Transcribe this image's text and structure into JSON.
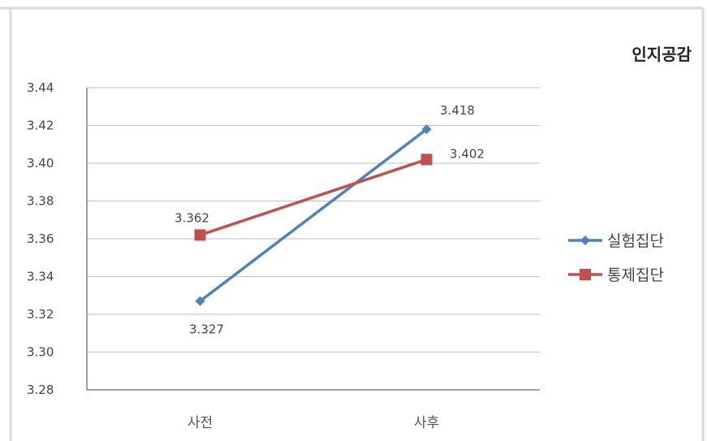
{
  "chart_data": {
    "type": "line",
    "title": "인지공감",
    "categories": [
      "사전",
      "사후"
    ],
    "series": [
      {
        "name": "실험집단",
        "values": [
          3.327,
          3.418
        ],
        "color": "#4f81bd",
        "marker": "diamond"
      },
      {
        "name": "통제집단",
        "values": [
          3.362,
          3.402
        ],
        "color": "#c0504d",
        "marker": "square"
      }
    ],
    "data_labels": {
      "실험집단": [
        "3.327",
        "3.418"
      ],
      "통제집단": [
        "3.362",
        "3.402"
      ]
    },
    "ylim": [
      3.28,
      3.44
    ],
    "yticks": [
      "3.28",
      "3.30",
      "3.32",
      "3.34",
      "3.36",
      "3.38",
      "3.40",
      "3.42",
      "3.44"
    ],
    "grid": true,
    "legend_position": "right",
    "xlabel": "",
    "ylabel": ""
  }
}
